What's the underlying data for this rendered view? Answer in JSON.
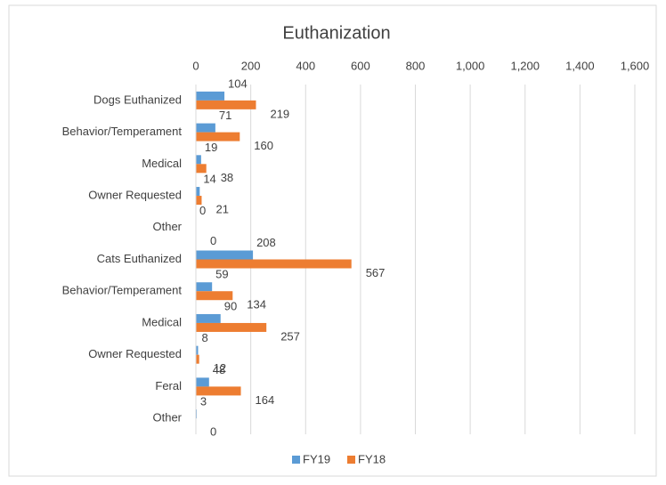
{
  "chart_data": {
    "type": "bar",
    "orientation": "horizontal",
    "title": "Euthanization",
    "categories": [
      "Dogs Euthanized",
      "Behavior/Temperament",
      "Medical",
      "Owner Requested",
      "Other",
      "Cats Euthanized",
      "Behavior/Temperament",
      "Medical",
      "Owner Requested",
      "Feral",
      "Other"
    ],
    "series": [
      {
        "name": "FY19",
        "color": "#5b9bd5",
        "values": [
          104,
          71,
          19,
          14,
          0,
          208,
          59,
          90,
          8,
          48,
          3
        ]
      },
      {
        "name": "FY18",
        "color": "#ed7d31",
        "values": [
          219,
          160,
          38,
          21,
          0,
          567,
          134,
          257,
          12,
          164,
          0
        ]
      }
    ],
    "xlim": [
      0,
      1600
    ],
    "xticks": [
      0,
      200,
      400,
      600,
      800,
      {
        "value": 1000,
        "label": "1,000"
      },
      {
        "value": 1200,
        "label": "1,200"
      },
      {
        "value": 1400,
        "label": "1,400"
      },
      {
        "value": 1600,
        "label": "1,600"
      }
    ],
    "grid": true,
    "legend": "bottom"
  }
}
